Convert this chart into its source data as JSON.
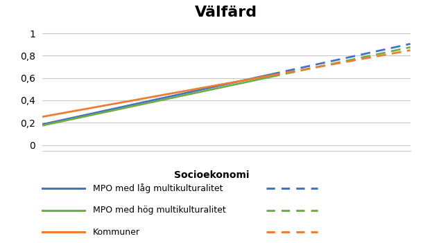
{
  "title": "Välfärd",
  "xlabel": "Socioekonomi",
  "yticks": [
    0,
    0.2,
    0.4,
    0.6,
    0.8,
    1.0
  ],
  "ytick_labels": [
    "0",
    "0,2",
    "0,4",
    "0,6",
    "0,8",
    "1"
  ],
  "ylim": [
    -0.05,
    1.08
  ],
  "xlim": [
    0.0,
    1.0
  ],
  "background_color": "#ffffff",
  "lines": [
    {
      "name": "blue_solid",
      "color": "#4472c4",
      "y_start": 0.185,
      "y_end": 0.905,
      "linestyle": "solid",
      "linewidth": 2.0,
      "x_start": 0.0,
      "x_end": 0.62
    },
    {
      "name": "blue_dashed",
      "color": "#4472c4",
      "y_start": 0.185,
      "y_end": 0.905,
      "linestyle": "dashed",
      "linewidth": 2.0,
      "x_start": 0.62,
      "x_end": 1.0
    },
    {
      "name": "green_solid",
      "color": "#70ad47",
      "y_start": 0.175,
      "y_end": 0.875,
      "linestyle": "solid",
      "linewidth": 2.0,
      "x_start": 0.0,
      "x_end": 0.62
    },
    {
      "name": "green_dashed",
      "color": "#70ad47",
      "y_start": 0.175,
      "y_end": 0.875,
      "linestyle": "dashed",
      "linewidth": 2.0,
      "x_start": 0.62,
      "x_end": 1.0
    },
    {
      "name": "orange_solid",
      "color": "#ed7d31",
      "y_start": 0.253,
      "y_end": 0.848,
      "linestyle": "solid",
      "linewidth": 2.0,
      "x_start": 0.0,
      "x_end": 0.62
    },
    {
      "name": "orange_dashed",
      "color": "#ed7d31",
      "y_start": 0.253,
      "y_end": 0.848,
      "linestyle": "dashed",
      "linewidth": 2.0,
      "x_start": 0.62,
      "x_end": 1.0
    }
  ],
  "legend_entries": [
    {
      "label": "MPO med låg multikulturalitet",
      "color": "#4472c4"
    },
    {
      "label": "MPO med hög multikulturalitet",
      "color": "#70ad47"
    },
    {
      "label": "Kommuner",
      "color": "#ed7d31"
    }
  ],
  "title_fontsize": 16,
  "xlabel_fontsize": 10,
  "xlabel_fontweight": "bold",
  "ytick_fontsize": 10,
  "legend_fontsize": 9,
  "grid_color": "#c8c8c8",
  "grid_linewidth": 0.8
}
